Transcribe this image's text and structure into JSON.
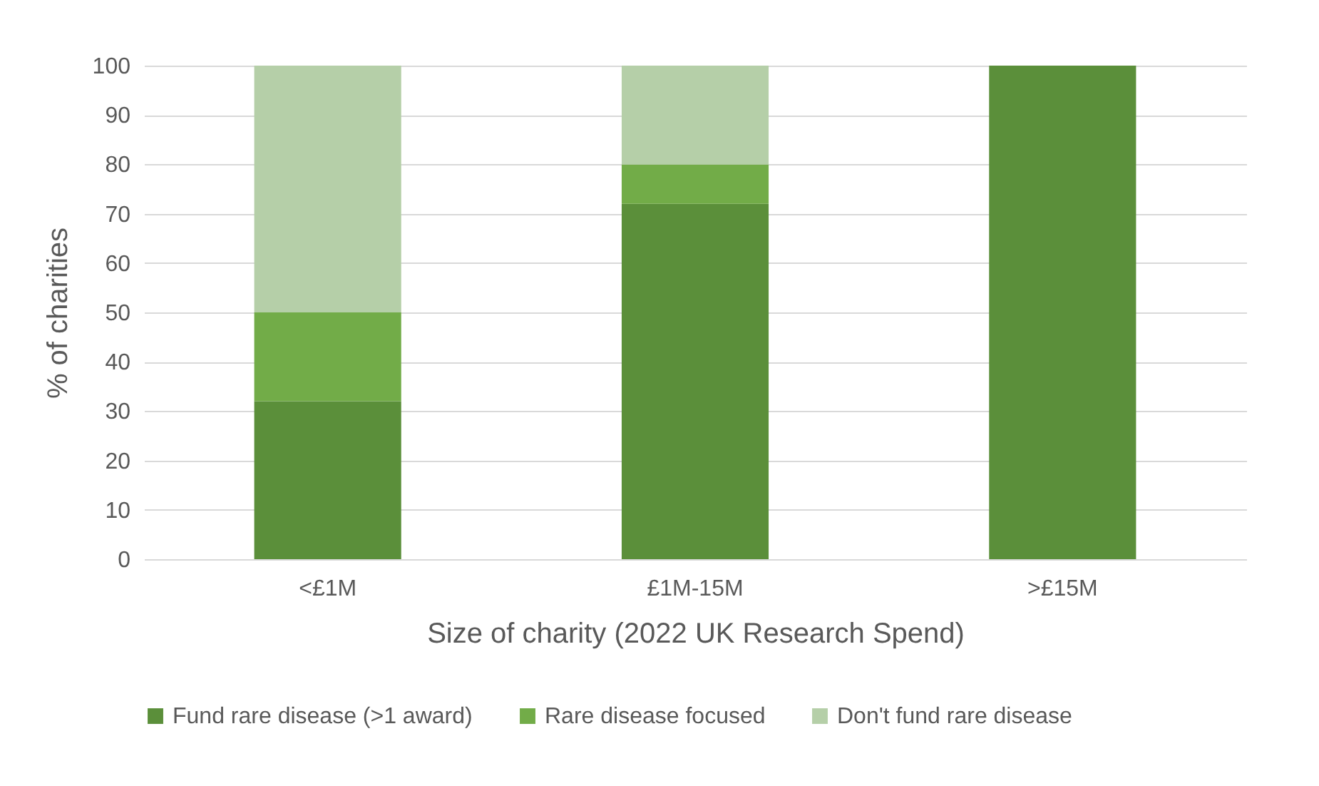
{
  "chart_data": {
    "type": "bar",
    "xlabel": "Size of charity (2022 UK Research Spend)",
    "ylabel": "% of charities",
    "categories": [
      "<£1M",
      "£1M-15M",
      ">£15M"
    ],
    "series": [
      {
        "name": "Fund rare disease (>1 award)",
        "color": "#5b8f3a",
        "values": [
          32,
          72,
          100
        ]
      },
      {
        "name": "Rare disease focused",
        "color": "#72ac48",
        "values": [
          18,
          8,
          0
        ]
      },
      {
        "name": "Don't fund rare disease",
        "color": "#b5cfa8",
        "values": [
          50,
          20,
          0
        ]
      }
    ],
    "stacked": true,
    "ylim": [
      0,
      100
    ],
    "yticks": [
      0,
      10,
      20,
      30,
      40,
      50,
      60,
      70,
      80,
      90,
      100
    ],
    "grid": "y",
    "legend": "bottom"
  }
}
